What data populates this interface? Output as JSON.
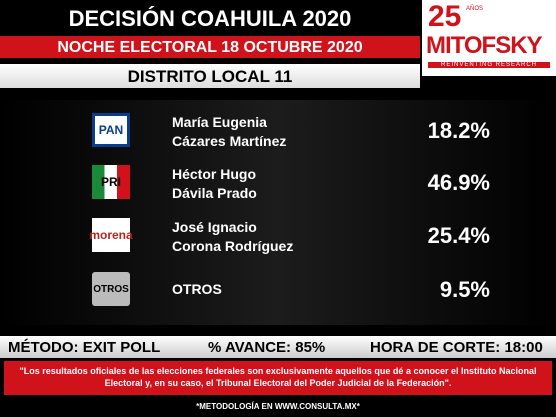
{
  "header": {
    "title": "DECISIÓN COAHUILA 2020",
    "subtitle": "NOCHE ELECTORAL 18 OCTUBRE 2020",
    "district": "DISTRITO LOCAL 11"
  },
  "logo": {
    "number": "25",
    "small": "AÑOS",
    "brand": "MITOFSKY",
    "tagline": "REINVENTING RESEARCH"
  },
  "results": [
    {
      "party": "PAN",
      "name": [
        "María Eugenia",
        "Cázares Martínez"
      ],
      "percent": "18.2%"
    },
    {
      "party": "PRI",
      "name": [
        "Héctor Hugo",
        "Dávila Prado"
      ],
      "percent": "46.9%"
    },
    {
      "party": "morena",
      "name": [
        "José Ignacio",
        "Corona Rodríguez"
      ],
      "percent": "25.4%"
    },
    {
      "party": "OTROS",
      "name": [
        "OTROS"
      ],
      "percent": "9.5%"
    }
  ],
  "footer": {
    "method": "MÉTODO:  EXIT POLL",
    "progress": "% AVANCE: 85%",
    "cutoff": "HORA DE CORTE: 18:00",
    "note": "\"Los resultados oficiales de las elecciones federales son exclusivamente aquellos que dé a conocer el Instituto Nacional Electoral y, en su caso, el Tribunal Electoral del  Poder Judicial de la Federación\".",
    "methodology": "*METODOLOGÍA EN WWW.CONSULTA.MX*"
  }
}
